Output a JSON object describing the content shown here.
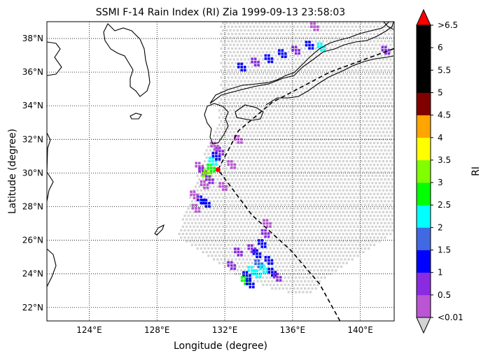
{
  "chart_data": {
    "type": "heatmap",
    "title": "SSMI F-14 Rain Index (RI) Zia 1999-09-13 23:58:03",
    "xlabel": "Longitude (degree)",
    "ylabel": "Latitude (degree)",
    "xlim": [
      121.5,
      142
    ],
    "ylim": [
      21.2,
      39
    ],
    "x_ticks": [
      {
        "value": 124,
        "label": "124°E"
      },
      {
        "value": 128,
        "label": "128°E"
      },
      {
        "value": 132,
        "label": "132°E"
      },
      {
        "value": 136,
        "label": "136°E"
      },
      {
        "value": 140,
        "label": "140°E"
      }
    ],
    "y_ticks": [
      {
        "value": 22,
        "label": "22°N"
      },
      {
        "value": 24,
        "label": "24°N"
      },
      {
        "value": 26,
        "label": "26°N"
      },
      {
        "value": 28,
        "label": "28°N"
      },
      {
        "value": 30,
        "label": "30°N"
      },
      {
        "value": 32,
        "label": "32°N"
      },
      {
        "value": 34,
        "label": "34°N"
      },
      {
        "value": 36,
        "label": "36°N"
      },
      {
        "value": 38,
        "label": "38°N"
      }
    ],
    "grid": "dotted",
    "no_rain_color": "#d3d3d3",
    "colorbar": {
      "label": "RI",
      "under_label": "<0.01",
      "over_label": ">6.5",
      "under_color": "#d3d3d3",
      "over_color": "#ff0000",
      "boundaries": [
        0.01,
        0.5,
        1,
        1.5,
        2,
        2.5,
        3,
        3.5,
        4,
        4.5,
        5,
        5.5,
        6,
        6.5
      ],
      "tick_labels": [
        "<0.01",
        "0.5",
        "1",
        "1.5",
        "2",
        "2.5",
        "3",
        "3.5",
        "4",
        "4.5",
        "5",
        "5.5",
        "6",
        ">6.5"
      ],
      "colors": [
        "#ba55d3",
        "#8a2be2",
        "#0000ff",
        "#4169e1",
        "#00ffff",
        "#00ff00",
        "#7fff00",
        "#ffff00",
        "#ffa500",
        "#800000",
        "#000000",
        "#000000",
        "#000000"
      ]
    },
    "storm_center": {
      "lon": 131.6,
      "lat": 30.2,
      "color": "#ff0000"
    },
    "track": [
      [
        138.8,
        21.2
      ],
      [
        137.6,
        23.4
      ],
      [
        135.9,
        25.4
      ],
      [
        133.6,
        27.5
      ],
      [
        131.6,
        30.2
      ],
      [
        132.8,
        32.5
      ],
      [
        134.8,
        34.2
      ],
      [
        138.2,
        36.0
      ],
      [
        142.0,
        37.4
      ]
    ],
    "swath": [
      [
        129.2,
        26.3
      ],
      [
        130.8,
        31.1
      ],
      [
        131.6,
        33.1
      ],
      [
        131.8,
        35.8
      ],
      [
        131.7,
        39.0
      ],
      [
        142.0,
        39.0
      ],
      [
        142.0,
        26.5
      ],
      [
        141.0,
        25.8
      ],
      [
        139.4,
        24.7
      ],
      [
        138.0,
        23.8
      ],
      [
        137.0,
        22.7
      ],
      [
        135.0,
        23.0
      ],
      [
        132.6,
        24.0
      ]
    ],
    "rain_cells": [
      {
        "lon": 130.5,
        "lat": 30.4,
        "ri": 0.3
      },
      {
        "lon": 130.7,
        "lat": 30.1,
        "ri": 0.7
      },
      {
        "lon": 130.9,
        "lat": 29.8,
        "ri": 3.2
      },
      {
        "lon": 131.0,
        "lat": 30.0,
        "ri": 3.4
      },
      {
        "lon": 131.2,
        "lat": 30.3,
        "ri": 2.8
      },
      {
        "lon": 131.1,
        "lat": 29.6,
        "ri": 0.6
      },
      {
        "lon": 130.8,
        "lat": 29.3,
        "ri": 0.4
      },
      {
        "lon": 131.3,
        "lat": 30.7,
        "ri": 2.2
      },
      {
        "lon": 131.5,
        "lat": 31.0,
        "ri": 1.2
      },
      {
        "lon": 131.7,
        "lat": 31.3,
        "ri": 0.6
      },
      {
        "lon": 131.4,
        "lat": 31.6,
        "ri": 0.4
      },
      {
        "lon": 130.6,
        "lat": 28.4,
        "ri": 1.4
      },
      {
        "lon": 130.9,
        "lat": 28.2,
        "ri": 1.1
      },
      {
        "lon": 130.3,
        "lat": 27.9,
        "ri": 0.4
      },
      {
        "lon": 130.2,
        "lat": 28.7,
        "ri": 0.3
      },
      {
        "lon": 131.9,
        "lat": 29.2,
        "ri": 0.4
      },
      {
        "lon": 132.4,
        "lat": 30.5,
        "ri": 0.3
      },
      {
        "lon": 132.8,
        "lat": 32.0,
        "ri": 0.3
      },
      {
        "lon": 133.6,
        "lat": 25.5,
        "ri": 0.8
      },
      {
        "lon": 133.9,
        "lat": 25.2,
        "ri": 1.3
      },
      {
        "lon": 134.2,
        "lat": 25.8,
        "ri": 1.1
      },
      {
        "lon": 134.0,
        "lat": 24.6,
        "ri": 1.9
      },
      {
        "lon": 133.6,
        "lat": 24.2,
        "ri": 2.3
      },
      {
        "lon": 133.9,
        "lat": 24.0,
        "ri": 2.4
      },
      {
        "lon": 134.3,
        "lat": 24.3,
        "ri": 2.2
      },
      {
        "lon": 133.3,
        "lat": 23.9,
        "ri": 1.2
      },
      {
        "lon": 133.2,
        "lat": 23.6,
        "ri": 2.7
      },
      {
        "lon": 133.5,
        "lat": 23.4,
        "ri": 1.0
      },
      {
        "lon": 134.6,
        "lat": 24.8,
        "ri": 1.1
      },
      {
        "lon": 134.8,
        "lat": 24.1,
        "ri": 1.2
      },
      {
        "lon": 135.1,
        "lat": 23.8,
        "ri": 0.7
      },
      {
        "lon": 134.4,
        "lat": 26.4,
        "ri": 0.7
      },
      {
        "lon": 132.8,
        "lat": 25.3,
        "ri": 0.6
      },
      {
        "lon": 132.4,
        "lat": 24.5,
        "ri": 0.9
      },
      {
        "lon": 134.5,
        "lat": 27.0,
        "ri": 0.4
      },
      {
        "lon": 133.0,
        "lat": 36.3,
        "ri": 1.1
      },
      {
        "lon": 133.8,
        "lat": 36.6,
        "ri": 0.9
      },
      {
        "lon": 134.6,
        "lat": 36.8,
        "ri": 1.0
      },
      {
        "lon": 135.4,
        "lat": 37.1,
        "ri": 1.1
      },
      {
        "lon": 136.2,
        "lat": 37.3,
        "ri": 0.8
      },
      {
        "lon": 137.0,
        "lat": 37.6,
        "ri": 1.3
      },
      {
        "lon": 137.7,
        "lat": 37.5,
        "ri": 2.3
      },
      {
        "lon": 137.3,
        "lat": 38.7,
        "ri": 0.4
      },
      {
        "lon": 141.5,
        "lat": 37.3,
        "ri": 0.9
      }
    ]
  }
}
